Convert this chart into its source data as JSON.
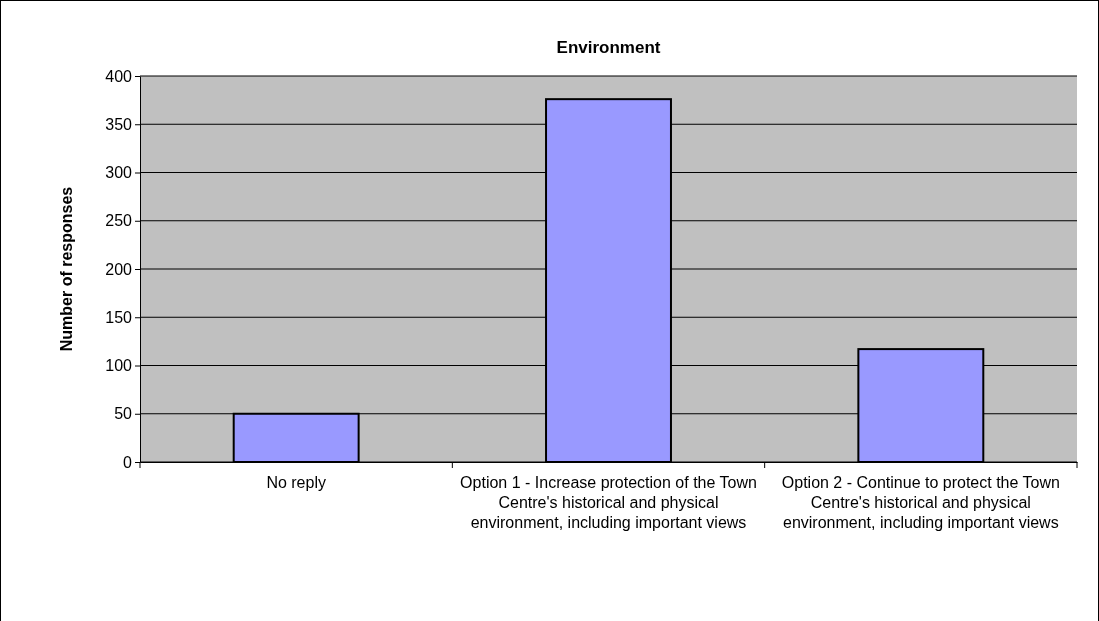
{
  "chart_data": {
    "type": "bar",
    "title": "Environment",
    "ylabel": "Number of responses",
    "categories": [
      "No reply",
      "Option 1 - Increase protection of the Town Centre's historical and physical environment, including important views",
      "Option 2 - Continue to protect the Town Centre's historical and physical environment, including important views"
    ],
    "values": [
      50,
      376,
      117
    ],
    "color": "#9999ff",
    "ylim": [
      0,
      400
    ],
    "yticks": [
      0,
      50,
      100,
      150,
      200,
      250,
      300,
      350,
      400
    ],
    "grid": "y"
  }
}
